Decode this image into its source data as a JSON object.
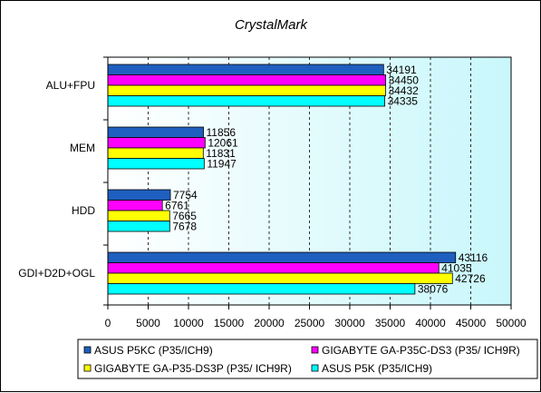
{
  "chart_data": {
    "type": "bar",
    "orientation": "horizontal",
    "title": "CrystalMark",
    "xlabel": "",
    "ylabel": "",
    "categories": [
      "ALU+FPU",
      "MEM",
      "HDD",
      "GDI+D2D+OGL"
    ],
    "xlim": [
      0,
      50000
    ],
    "xticks": [
      0,
      5000,
      10000,
      15000,
      20000,
      25000,
      30000,
      35000,
      40000,
      45000,
      50000
    ],
    "tick_labels": [
      "0",
      "5000",
      "10000",
      "15000",
      "20000",
      "25000",
      "30000",
      "35000",
      "40000",
      "45000",
      "50000"
    ],
    "grid": true,
    "legend_position": "bottom",
    "plot_background": "gradient white to light cyan",
    "series": [
      {
        "name": "ASUS P5KC (P35/ICH9)",
        "color": "#1f5fbf",
        "values": [
          34191,
          11856,
          7754,
          43116
        ]
      },
      {
        "name": "GIGABYTE GA-P35C-DS3 (P35/ ICH9R)",
        "color": "#ff00ff",
        "values": [
          34450,
          12061,
          6761,
          41035
        ]
      },
      {
        "name": "GIGABYTE GA-P35-DS3P (P35/ ICH9R)",
        "color": "#ffff00",
        "values": [
          34432,
          11831,
          7665,
          42726
        ]
      },
      {
        "name": "ASUS P5K (P35/ICH9)",
        "color": "#00ffff",
        "values": [
          34335,
          11947,
          7678,
          38076
        ]
      }
    ],
    "value_labels": [
      [
        "34191",
        "11856",
        "7754",
        "43116"
      ],
      [
        "34450",
        "12061",
        "6761",
        "41035"
      ],
      [
        "34432",
        "11831",
        "7665",
        "42726"
      ],
      [
        "34335",
        "11947",
        "7678",
        "38076"
      ]
    ]
  }
}
